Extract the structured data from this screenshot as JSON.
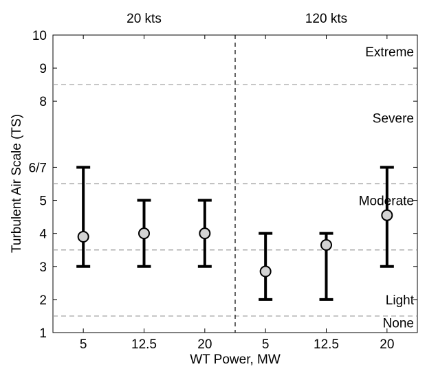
{
  "chart_data": {
    "type": "errorbar",
    "title": "",
    "xlabel": "WT Power, MW",
    "ylabel": "Turbulent Air Scale (TS)",
    "ylim": [
      1,
      10
    ],
    "yticks": [
      1,
      2,
      3,
      4,
      5,
      6,
      7,
      8,
      9,
      10
    ],
    "ytick_labels": [
      "1",
      "2",
      "3",
      "4",
      "5",
      "6/7",
      "8",
      "9",
      "10"
    ],
    "ytick_values": [
      1,
      2,
      3,
      4,
      5,
      6,
      8,
      9,
      10
    ],
    "categories": [
      "5",
      "12.5",
      "20",
      "5",
      "12.5",
      "20"
    ],
    "panels": [
      "20 kts",
      "120 kts"
    ],
    "series": [
      {
        "panel": "20 kts",
        "points": [
          {
            "x": "5",
            "value": 3.9,
            "low": 3,
            "high": 6
          },
          {
            "x": "12.5",
            "value": 4.0,
            "low": 3,
            "high": 5
          },
          {
            "x": "20",
            "value": 4.0,
            "low": 3,
            "high": 5
          }
        ]
      },
      {
        "panel": "120 kts",
        "points": [
          {
            "x": "5",
            "value": 2.85,
            "low": 2,
            "high": 4
          },
          {
            "x": "12.5",
            "value": 3.65,
            "low": 2,
            "high": 4
          },
          {
            "x": "20",
            "value": 4.55,
            "low": 3,
            "high": 6
          }
        ]
      }
    ],
    "thresholds": [
      1.5,
      3.5,
      5.5,
      8.5
    ],
    "band_labels": [
      {
        "text": "None",
        "y": 1.3
      },
      {
        "text": "Light",
        "y": 2.0
      },
      {
        "text": "Moderate",
        "y": 5.0
      },
      {
        "text": "Severe",
        "y": 7.5
      },
      {
        "text": "Extreme",
        "y": 9.5
      }
    ],
    "colors": {
      "marker_fill": "#d3d3d3",
      "marker_edge": "#000000",
      "errorbar": "#000000",
      "threshold_line": "#999999",
      "divider_line": "#000000"
    },
    "grid": false
  }
}
